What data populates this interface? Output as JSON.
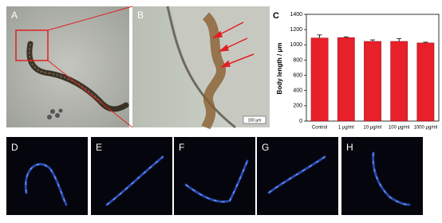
{
  "panel_labels": [
    "A",
    "B",
    "D",
    "E",
    "F",
    "G",
    "H"
  ],
  "scale_bar": "100 μm",
  "chart_data": {
    "type": "bar",
    "panel_label": "C",
    "ylabel": "Body length / μm",
    "categories": [
      "Control",
      "1 μg/ml",
      "10 μg/ml",
      "100 μg/ml",
      "1000 μg/ml"
    ],
    "values": [
      1090,
      1095,
      1045,
      1045,
      1025
    ],
    "errors": [
      40,
      10,
      20,
      35,
      10
    ],
    "color": "#e8202a",
    "ylim": [
      0,
      1400
    ],
    "yticks": [
      0,
      200,
      400,
      600,
      800,
      1000,
      1200,
      1400
    ]
  }
}
